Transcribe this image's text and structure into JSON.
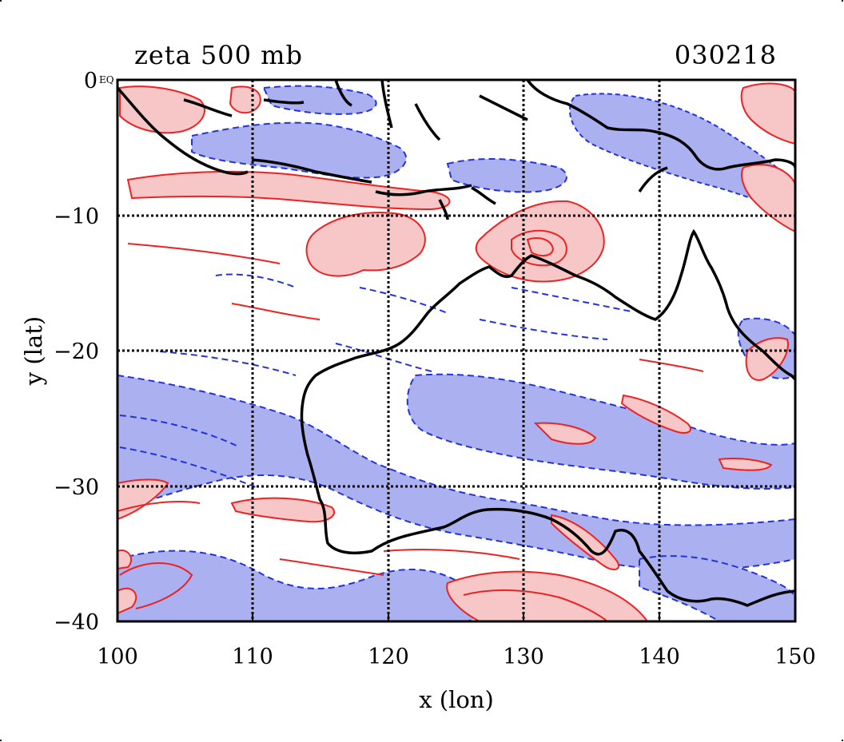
{
  "map": {
    "title_left": "zeta 500 mb",
    "title_right": "030218",
    "x_axis_label": "x (lon)",
    "y_axis_label": "y (lat)",
    "x_ticks": [
      "100",
      "110",
      "120",
      "130",
      "140",
      "150"
    ],
    "y_ticks": [
      "0",
      "−10",
      "−20",
      "−30",
      "−40"
    ],
    "y_top_suffix": "EQ",
    "lon_range": [
      100,
      150
    ],
    "lat_range": [
      -40,
      0
    ],
    "grid_lons": [
      110,
      120,
      130,
      140
    ],
    "grid_lats": [
      -10,
      -20,
      -30
    ],
    "colors": {
      "positive_line": "#ee2222",
      "positive_fill": "#f7c6c6",
      "negative_line": "#2233dd",
      "negative_fill": "#aab0f0",
      "coast": "#000000",
      "grid": "#000000"
    }
  }
}
